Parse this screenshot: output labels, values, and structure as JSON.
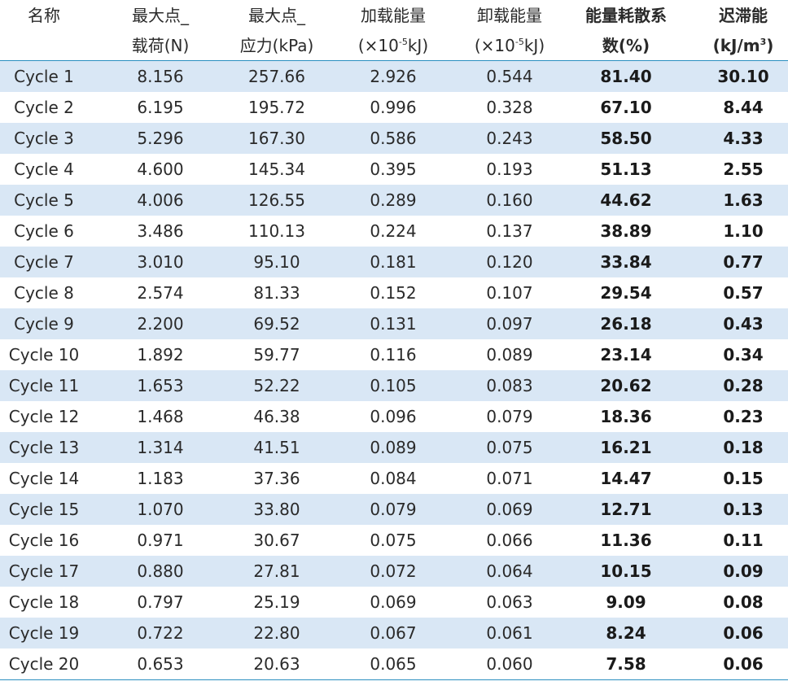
{
  "table": {
    "headers": [
      {
        "line1": "名称",
        "line2": ""
      },
      {
        "line1": "最大点_",
        "line2": "载荷(N)"
      },
      {
        "line1": "最大点_",
        "line2": "应力(kPa)"
      },
      {
        "line1": "加载能量",
        "line2_pre": "(×10",
        "line2_sup": "-5",
        "line2_post": "kJ)"
      },
      {
        "line1": "卸载能量",
        "line2_pre": "(×10",
        "line2_sup": "-5",
        "line2_post": "kJ)"
      },
      {
        "line1": "能量耗散系",
        "line2": "数(%)"
      },
      {
        "line1": "迟滞能",
        "line2_pre": "(kJ/m",
        "line2_sup": "3",
        "line2_post": ")"
      }
    ],
    "rows": [
      [
        "Cycle 1",
        "8.156",
        "257.66",
        "2.926",
        "0.544",
        "81.40",
        "30.10"
      ],
      [
        "Cycle 2",
        "6.195",
        "195.72",
        "0.996",
        "0.328",
        "67.10",
        "8.44"
      ],
      [
        "Cycle 3",
        "5.296",
        "167.30",
        "0.586",
        "0.243",
        "58.50",
        "4.33"
      ],
      [
        "Cycle 4",
        "4.600",
        "145.34",
        "0.395",
        "0.193",
        "51.13",
        "2.55"
      ],
      [
        "Cycle 5",
        "4.006",
        "126.55",
        "0.289",
        "0.160",
        "44.62",
        "1.63"
      ],
      [
        "Cycle 6",
        "3.486",
        "110.13",
        "0.224",
        "0.137",
        "38.89",
        "1.10"
      ],
      [
        "Cycle 7",
        "3.010",
        "95.10",
        "0.181",
        "0.120",
        "33.84",
        "0.77"
      ],
      [
        "Cycle 8",
        "2.574",
        "81.33",
        "0.152",
        "0.107",
        "29.54",
        "0.57"
      ],
      [
        "Cycle 9",
        "2.200",
        "69.52",
        "0.131",
        "0.097",
        "26.18",
        "0.43"
      ],
      [
        "Cycle 10",
        "1.892",
        "59.77",
        "0.116",
        "0.089",
        "23.14",
        "0.34"
      ],
      [
        "Cycle 11",
        "1.653",
        "52.22",
        "0.105",
        "0.083",
        "20.62",
        "0.28"
      ],
      [
        "Cycle 12",
        "1.468",
        "46.38",
        "0.096",
        "0.079",
        "18.36",
        "0.23"
      ],
      [
        "Cycle 13",
        "1.314",
        "41.51",
        "0.089",
        "0.075",
        "16.21",
        "0.18"
      ],
      [
        "Cycle 14",
        "1.183",
        "37.36",
        "0.084",
        "0.071",
        "14.47",
        "0.15"
      ],
      [
        "Cycle 15",
        "1.070",
        "33.80",
        "0.079",
        "0.069",
        "12.71",
        "0.13"
      ],
      [
        "Cycle 16",
        "0.971",
        "30.67",
        "0.075",
        "0.066",
        "11.36",
        "0.11"
      ],
      [
        "Cycle 17",
        "0.880",
        "27.81",
        "0.072",
        "0.064",
        "10.15",
        "0.09"
      ],
      [
        "Cycle 18",
        "0.797",
        "25.19",
        "0.069",
        "0.063",
        "9.09",
        "0.08"
      ],
      [
        "Cycle 19",
        "0.722",
        "22.80",
        "0.067",
        "0.061",
        "8.24",
        "0.06"
      ],
      [
        "Cycle 20",
        "0.653",
        "20.63",
        "0.065",
        "0.060",
        "7.58",
        "0.06"
      ]
    ]
  },
  "colors": {
    "stripe": "#d9e7f5",
    "rule": "#2b8fc0"
  }
}
